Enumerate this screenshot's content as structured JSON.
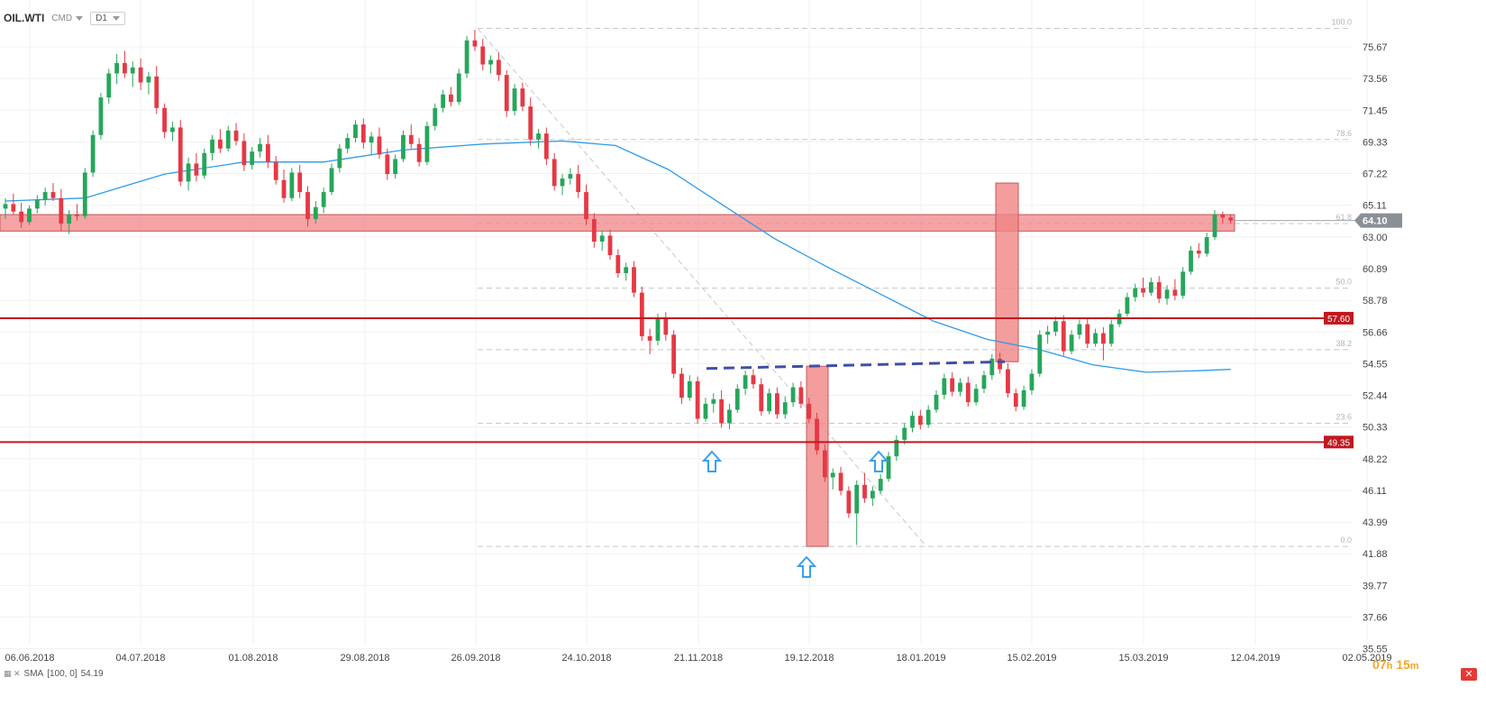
{
  "header": {
    "symbol": "OIL.WTI",
    "market": "CMD",
    "timeframe": "D1"
  },
  "indicator": {
    "label": "SMA",
    "params": "[100, 0]",
    "value": "54.19"
  },
  "countdown": {
    "hours": "07",
    "hours_unit": "h",
    "minutes": "15",
    "minutes_unit": "m"
  },
  "colors": {
    "bull": "#26a65b",
    "bear": "#e53945",
    "sma": "#2f9be8",
    "level_line": "#c0181f",
    "zone_fill": "#f08585",
    "neckline": "#3f4fa8",
    "arrow": "#3aa0f0",
    "price_tag": "#8a9096"
  },
  "chart_data": {
    "type": "candlestick",
    "yaxis": {
      "ticks": [
        "75.67",
        "73.56",
        "71.45",
        "69.33",
        "67.22",
        "65.11",
        "63.00",
        "60.89",
        "58.78",
        "56.66",
        "54.55",
        "52.44",
        "50.33",
        "48.22",
        "46.11",
        "43.99",
        "41.88",
        "39.77",
        "37.66",
        "35.55"
      ]
    },
    "xaxis": {
      "ticks": [
        "06.06.2018",
        "04.07.2018",
        "01.08.2018",
        "29.08.2018",
        "26.09.2018",
        "24.10.2018",
        "21.11.2018",
        "19.12.2018",
        "18.01.2019",
        "15.02.2019",
        "15.03.2019",
        "12.04.2019",
        "02.05.2019"
      ]
    },
    "last_price": "64.10",
    "levels": [
      {
        "label": "57.60",
        "value": 57.6
      },
      {
        "label": "49.35",
        "value": 49.35
      }
    ],
    "fibonacci": [
      {
        "label": "100.0",
        "value": 76.9
      },
      {
        "label": "78.6",
        "value": 69.5
      },
      {
        "label": "61.8",
        "value": 63.9
      },
      {
        "label": "50.0",
        "value": 59.6
      },
      {
        "label": "38.2",
        "value": 55.5
      },
      {
        "label": "23.6",
        "value": 50.6
      },
      {
        "label": "0.0",
        "value": 42.4
      }
    ],
    "zone": {
      "low": 63.4,
      "high": 64.5
    },
    "candles_approx": [
      [
        0,
        64.9,
        65.6,
        64.2,
        65.2
      ],
      [
        3,
        65.2,
        65.9,
        64.5,
        64.7
      ],
      [
        6,
        64.7,
        65.3,
        63.6,
        64.0
      ],
      [
        9,
        64.0,
        65.1,
        63.8,
        64.9
      ],
      [
        12,
        64.9,
        65.8,
        64.6,
        65.5
      ],
      [
        15,
        65.5,
        66.3,
        65.1,
        66.0
      ],
      [
        18,
        66.0,
        66.6,
        65.4,
        65.6
      ],
      [
        21,
        65.6,
        66.2,
        63.4,
        63.9
      ],
      [
        24,
        63.9,
        64.8,
        63.2,
        64.5
      ],
      [
        27,
        64.5,
        65.2,
        64.1,
        64.4
      ],
      [
        30,
        64.4,
        67.6,
        64.2,
        67.3
      ],
      [
        33,
        67.3,
        70.1,
        67.0,
        69.8
      ],
      [
        36,
        69.8,
        72.6,
        69.5,
        72.3
      ],
      [
        39,
        72.3,
        74.2,
        71.9,
        73.9
      ],
      [
        42,
        73.9,
        75.2,
        73.2,
        74.6
      ],
      [
        45,
        74.6,
        75.4,
        73.6,
        73.9
      ],
      [
        48,
        73.9,
        74.7,
        73.0,
        74.3
      ],
      [
        51,
        74.3,
        74.9,
        72.8,
        73.3
      ],
      [
        54,
        73.3,
        74.0,
        72.5,
        73.7
      ],
      [
        57,
        73.7,
        74.4,
        71.2,
        71.6
      ],
      [
        60,
        71.6,
        71.9,
        69.6,
        70.0
      ],
      [
        63,
        70.0,
        70.7,
        69.4,
        70.3
      ],
      [
        66,
        70.3,
        70.8,
        66.4,
        66.7
      ],
      [
        69,
        66.7,
        68.3,
        66.1,
        67.9
      ],
      [
        72,
        67.9,
        68.6,
        66.7,
        67.1
      ],
      [
        75,
        67.1,
        68.9,
        66.9,
        68.6
      ],
      [
        78,
        68.6,
        69.8,
        68.1,
        69.5
      ],
      [
        81,
        69.5,
        70.2,
        68.6,
        68.9
      ],
      [
        84,
        68.9,
        70.4,
        68.7,
        70.1
      ],
      [
        87,
        70.1,
        70.6,
        69.1,
        69.4
      ],
      [
        90,
        69.4,
        69.9,
        67.4,
        67.8
      ],
      [
        93,
        67.8,
        69.0,
        67.5,
        68.7
      ],
      [
        96,
        68.7,
        69.6,
        68.3,
        69.2
      ],
      [
        99,
        69.2,
        69.8,
        67.6,
        68.0
      ],
      [
        102,
        68.0,
        68.4,
        66.5,
        66.8
      ],
      [
        105,
        66.8,
        67.5,
        65.3,
        65.6
      ],
      [
        108,
        65.6,
        67.6,
        65.4,
        67.3
      ],
      [
        111,
        67.3,
        67.8,
        65.6,
        66.0
      ],
      [
        114,
        66.0,
        66.4,
        63.7,
        64.2
      ],
      [
        117,
        64.2,
        65.4,
        63.9,
        65.0
      ],
      [
        120,
        65.0,
        66.3,
        64.6,
        66.0
      ],
      [
        123,
        66.0,
        67.9,
        65.8,
        67.6
      ],
      [
        126,
        67.6,
        69.2,
        67.3,
        68.9
      ],
      [
        129,
        68.9,
        69.9,
        68.6,
        69.6
      ],
      [
        132,
        69.6,
        70.8,
        69.3,
        70.5
      ],
      [
        135,
        70.5,
        70.9,
        68.9,
        69.3
      ],
      [
        138,
        69.3,
        70.0,
        68.5,
        69.7
      ],
      [
        141,
        69.7,
        70.3,
        68.2,
        68.5
      ],
      [
        144,
        68.5,
        68.9,
        66.8,
        67.2
      ],
      [
        147,
        67.2,
        68.5,
        66.9,
        68.2
      ],
      [
        150,
        68.2,
        70.1,
        68.0,
        69.8
      ],
      [
        153,
        69.8,
        70.5,
        68.9,
        69.2
      ],
      [
        156,
        69.2,
        69.6,
        67.7,
        68.0
      ],
      [
        159,
        68.0,
        70.7,
        67.8,
        70.4
      ],
      [
        162,
        70.4,
        71.9,
        70.1,
        71.6
      ],
      [
        165,
        71.6,
        72.8,
        71.3,
        72.5
      ],
      [
        168,
        72.5,
        73.0,
        71.7,
        72.0
      ],
      [
        171,
        72.0,
        74.2,
        71.8,
        73.9
      ],
      [
        174,
        73.9,
        76.4,
        73.6,
        76.1
      ],
      [
        177,
        76.1,
        76.8,
        75.4,
        75.7
      ],
      [
        180,
        75.7,
        76.2,
        74.1,
        74.5
      ],
      [
        183,
        74.5,
        75.1,
        73.9,
        74.8
      ],
      [
        186,
        74.8,
        75.3,
        73.4,
        73.8
      ],
      [
        189,
        73.8,
        74.1,
        71.0,
        71.4
      ],
      [
        192,
        71.4,
        73.2,
        71.1,
        72.9
      ],
      [
        195,
        72.9,
        73.3,
        71.4,
        71.7
      ],
      [
        198,
        71.7,
        72.3,
        69.1,
        69.5
      ],
      [
        201,
        69.5,
        70.2,
        68.9,
        69.9
      ],
      [
        204,
        69.9,
        70.3,
        67.8,
        68.2
      ],
      [
        207,
        68.2,
        68.6,
        66.1,
        66.4
      ],
      [
        210,
        66.4,
        67.2,
        65.8,
        66.9
      ],
      [
        213,
        66.9,
        67.6,
        66.5,
        67.2
      ],
      [
        216,
        67.2,
        67.8,
        65.6,
        66.0
      ],
      [
        219,
        66.0,
        66.5,
        63.8,
        64.2
      ],
      [
        222,
        64.2,
        64.6,
        62.3,
        62.7
      ],
      [
        225,
        62.7,
        63.4,
        62.1,
        63.1
      ],
      [
        228,
        63.1,
        63.5,
        61.5,
        61.8
      ],
      [
        231,
        61.8,
        62.2,
        60.3,
        60.6
      ],
      [
        234,
        60.6,
        61.3,
        60.1,
        61.0
      ],
      [
        237,
        61.0,
        61.4,
        59.0,
        59.3
      ],
      [
        240,
        59.3,
        59.7,
        56.1,
        56.4
      ],
      [
        243,
        56.4,
        56.9,
        55.2,
        56.1
      ],
      [
        246,
        56.1,
        57.9,
        55.8,
        57.6
      ],
      [
        249,
        57.6,
        58.0,
        56.1,
        56.5
      ],
      [
        252,
        56.5,
        56.8,
        53.6,
        53.9
      ],
      [
        255,
        53.9,
        54.3,
        51.9,
        52.3
      ],
      [
        258,
        52.3,
        53.8,
        52.1,
        53.4
      ],
      [
        261,
        53.4,
        53.7,
        50.6,
        50.9
      ],
      [
        264,
        50.9,
        52.3,
        50.7,
        51.9
      ],
      [
        267,
        51.9,
        52.6,
        51.3,
        52.2
      ],
      [
        270,
        52.2,
        52.8,
        50.3,
        50.6
      ],
      [
        273,
        50.6,
        51.9,
        50.2,
        51.5
      ],
      [
        276,
        51.5,
        53.2,
        51.3,
        52.9
      ],
      [
        279,
        52.9,
        54.1,
        52.5,
        53.8
      ],
      [
        282,
        53.8,
        54.2,
        52.9,
        53.2
      ],
      [
        285,
        53.2,
        53.6,
        51.1,
        51.4
      ],
      [
        288,
        51.4,
        52.9,
        51.2,
        52.6
      ],
      [
        291,
        52.6,
        53.0,
        50.9,
        51.2
      ],
      [
        294,
        51.2,
        52.4,
        50.9,
        52.0
      ],
      [
        297,
        52.0,
        53.3,
        51.7,
        53.0
      ],
      [
        300,
        53.0,
        53.4,
        51.6,
        51.9
      ],
      [
        303,
        51.9,
        52.3,
        50.6,
        50.9
      ],
      [
        306,
        50.9,
        51.3,
        48.5,
        48.8
      ],
      [
        309,
        48.8,
        49.2,
        46.7,
        47.0
      ],
      [
        312,
        47.0,
        47.6,
        46.2,
        47.3
      ],
      [
        315,
        47.3,
        47.7,
        45.8,
        46.1
      ],
      [
        318,
        46.1,
        46.4,
        44.3,
        44.6
      ],
      [
        321,
        44.6,
        46.8,
        42.5,
        46.5
      ],
      [
        324,
        46.5,
        47.3,
        45.3,
        45.6
      ],
      [
        327,
        45.6,
        46.4,
        45.1,
        46.1
      ],
      [
        330,
        46.1,
        47.2,
        45.9,
        46.9
      ],
      [
        333,
        46.9,
        48.7,
        46.7,
        48.4
      ],
      [
        336,
        48.4,
        49.8,
        48.1,
        49.5
      ],
      [
        339,
        49.5,
        50.6,
        49.2,
        50.3
      ],
      [
        342,
        50.3,
        51.4,
        50.0,
        51.1
      ],
      [
        345,
        51.1,
        51.5,
        50.2,
        50.5
      ],
      [
        348,
        50.5,
        51.8,
        50.3,
        51.5
      ],
      [
        351,
        51.5,
        52.8,
        51.3,
        52.5
      ],
      [
        354,
        52.5,
        53.9,
        52.2,
        53.6
      ],
      [
        357,
        53.6,
        54.0,
        52.4,
        52.7
      ],
      [
        360,
        52.7,
        53.6,
        52.4,
        53.3
      ],
      [
        363,
        53.3,
        53.7,
        51.7,
        52.0
      ],
      [
        366,
        52.0,
        53.2,
        51.8,
        52.9
      ],
      [
        369,
        52.9,
        54.1,
        52.6,
        53.8
      ],
      [
        372,
        53.8,
        55.2,
        53.5,
        54.9
      ],
      [
        375,
        54.9,
        55.3,
        53.9,
        54.2
      ],
      [
        378,
        54.2,
        54.6,
        52.3,
        52.6
      ],
      [
        381,
        52.6,
        52.9,
        51.4,
        51.7
      ],
      [
        384,
        51.7,
        53.1,
        51.5,
        52.8
      ],
      [
        387,
        52.8,
        54.2,
        52.5,
        53.9
      ],
      [
        390,
        53.9,
        56.8,
        53.7,
        56.5
      ],
      [
        393,
        56.5,
        57.1,
        55.9,
        56.7
      ],
      [
        396,
        56.7,
        57.7,
        56.4,
        57.4
      ],
      [
        399,
        57.4,
        57.8,
        55.1,
        55.4
      ],
      [
        402,
        55.4,
        56.8,
        55.2,
        56.5
      ],
      [
        405,
        56.5,
        57.5,
        56.2,
        57.2
      ],
      [
        408,
        57.2,
        57.6,
        55.6,
        55.9
      ],
      [
        411,
        55.9,
        56.9,
        55.7,
        56.6
      ],
      [
        414,
        56.6,
        57.0,
        54.8,
        55.9
      ],
      [
        417,
        55.9,
        57.5,
        55.7,
        57.2
      ],
      [
        420,
        57.2,
        58.2,
        57.0,
        57.9
      ],
      [
        423,
        57.9,
        59.3,
        57.7,
        59.0
      ],
      [
        426,
        59.0,
        59.9,
        58.7,
        59.6
      ],
      [
        429,
        59.6,
        60.3,
        59.0,
        59.3
      ],
      [
        432,
        59.3,
        60.3,
        59.1,
        60.0
      ],
      [
        435,
        60.0,
        60.4,
        58.6,
        58.9
      ],
      [
        438,
        58.9,
        59.8,
        58.5,
        59.5
      ],
      [
        441,
        59.5,
        60.2,
        58.8,
        59.1
      ],
      [
        444,
        59.1,
        61.0,
        58.9,
        60.7
      ],
      [
        447,
        60.7,
        62.4,
        60.5,
        62.1
      ],
      [
        450,
        62.1,
        62.6,
        61.6,
        61.9
      ],
      [
        453,
        61.9,
        63.3,
        61.7,
        63.0
      ],
      [
        456,
        63.0,
        64.8,
        62.8,
        64.5
      ],
      [
        459,
        64.5,
        64.7,
        63.9,
        64.3
      ],
      [
        462,
        64.3,
        64.5,
        63.9,
        64.1
      ]
    ],
    "sma_approx": [
      [
        0,
        65.4
      ],
      [
        30,
        65.6
      ],
      [
        60,
        67.2
      ],
      [
        90,
        68.0
      ],
      [
        120,
        68.0
      ],
      [
        150,
        68.8
      ],
      [
        180,
        69.2
      ],
      [
        210,
        69.4
      ],
      [
        230,
        69.1
      ],
      [
        250,
        67.5
      ],
      [
        270,
        65.2
      ],
      [
        290,
        62.9
      ],
      [
        310,
        61.0
      ],
      [
        330,
        59.2
      ],
      [
        350,
        57.4
      ],
      [
        370,
        56.2
      ],
      [
        390,
        55.5
      ],
      [
        410,
        54.5
      ],
      [
        430,
        54.0
      ],
      [
        450,
        54.1
      ],
      [
        462,
        54.19
      ]
    ]
  }
}
